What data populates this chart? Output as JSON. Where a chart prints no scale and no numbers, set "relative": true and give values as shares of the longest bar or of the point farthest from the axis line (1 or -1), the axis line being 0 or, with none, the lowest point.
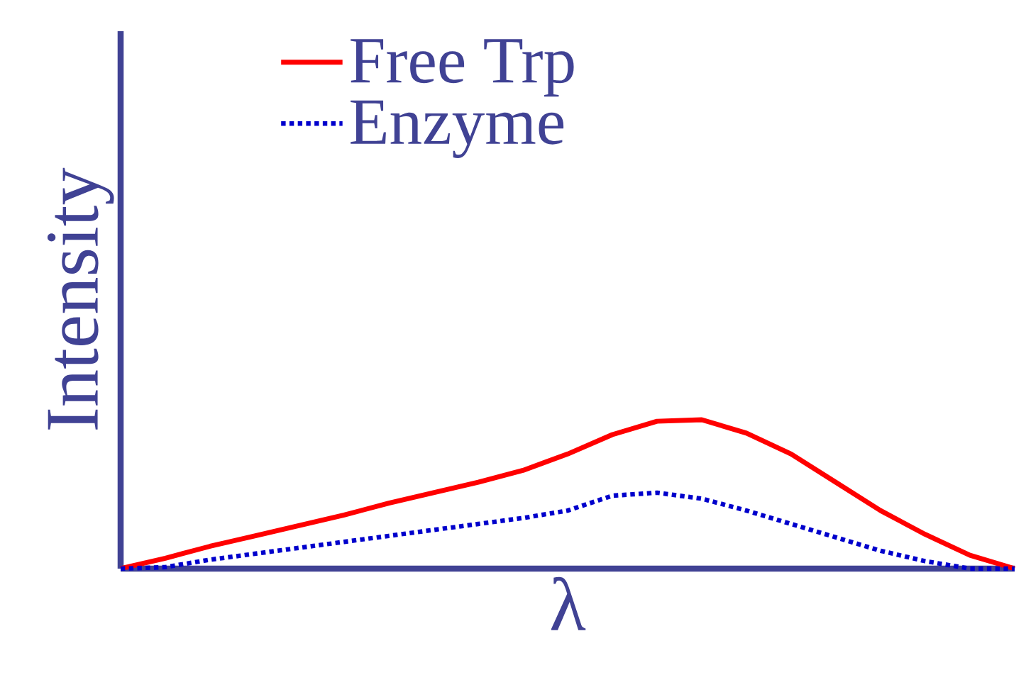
{
  "chart_data": {
    "type": "line",
    "relative": true,
    "xlabel": "λ",
    "ylabel": "Intensity",
    "legend": "top",
    "categories": [
      null,
      null,
      null,
      null,
      null,
      null,
      null,
      null,
      null,
      null,
      null,
      null,
      null,
      null,
      null,
      null,
      null,
      null,
      null,
      null,
      null
    ],
    "series": [
      {
        "name": "Free Trp",
        "color": "#ff0000",
        "line_style": "solid",
        "values": [
          0,
          0.07,
          0.15,
          0.22,
          0.29,
          0.36,
          0.44,
          0.51,
          0.58,
          0.66,
          0.77,
          0.9,
          0.99,
          1,
          0.91,
          0.77,
          0.58,
          0.39,
          0.23,
          0.09,
          0
        ]
      },
      {
        "name": "Enzyme",
        "color": "#0000cc",
        "line_style": "dotted",
        "values": [
          0,
          0.01,
          0.06,
          0.1,
          0.14,
          0.18,
          0.22,
          0.26,
          0.3,
          0.34,
          0.39,
          0.49,
          0.51,
          0.47,
          0.39,
          0.3,
          0.21,
          0.12,
          0.05,
          0,
          0
        ]
      }
    ]
  }
}
